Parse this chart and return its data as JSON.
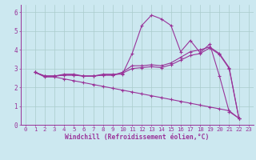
{
  "xlabel": "Windchill (Refroidissement éolien,°C)",
  "bg_color": "#cce8f0",
  "line_color": "#993399",
  "grid_color": "#aacccc",
  "xlim": [
    -0.5,
    23.5
  ],
  "ylim": [
    0,
    6.4
  ],
  "xticks": [
    0,
    1,
    2,
    3,
    4,
    5,
    6,
    7,
    8,
    9,
    10,
    11,
    12,
    13,
    14,
    15,
    16,
    17,
    18,
    19,
    20,
    21,
    22,
    23
  ],
  "yticks": [
    0,
    1,
    2,
    3,
    4,
    5,
    6
  ],
  "series": [
    [
      2.8,
      2.6,
      2.6,
      2.7,
      2.7,
      2.6,
      2.6,
      2.7,
      2.7,
      2.7,
      3.8,
      5.3,
      5.85,
      5.65,
      5.3,
      3.9,
      4.5,
      3.85,
      4.3,
      2.6,
      0.7,
      0.35
    ],
    [
      2.8,
      2.6,
      2.6,
      2.65,
      2.65,
      2.6,
      2.6,
      2.65,
      2.65,
      2.8,
      3.15,
      3.15,
      3.2,
      3.15,
      3.3,
      3.6,
      3.9,
      4.0,
      4.15,
      3.8,
      3.05,
      0.35
    ],
    [
      2.8,
      2.6,
      2.6,
      2.65,
      2.65,
      2.6,
      2.6,
      2.65,
      2.65,
      2.75,
      3.0,
      3.05,
      3.1,
      3.05,
      3.2,
      3.45,
      3.7,
      3.8,
      4.1,
      3.75,
      3.0,
      0.35
    ],
    [
      2.8,
      2.55,
      2.55,
      2.45,
      2.35,
      2.25,
      2.15,
      2.05,
      1.95,
      1.85,
      1.75,
      1.65,
      1.55,
      1.45,
      1.35,
      1.25,
      1.15,
      1.05,
      0.95,
      0.85,
      0.75,
      0.35
    ]
  ],
  "x_start": 1,
  "marker_size": 3,
  "line_width": 0.8,
  "tick_fontsize": 5.2,
  "label_fontsize": 5.8
}
